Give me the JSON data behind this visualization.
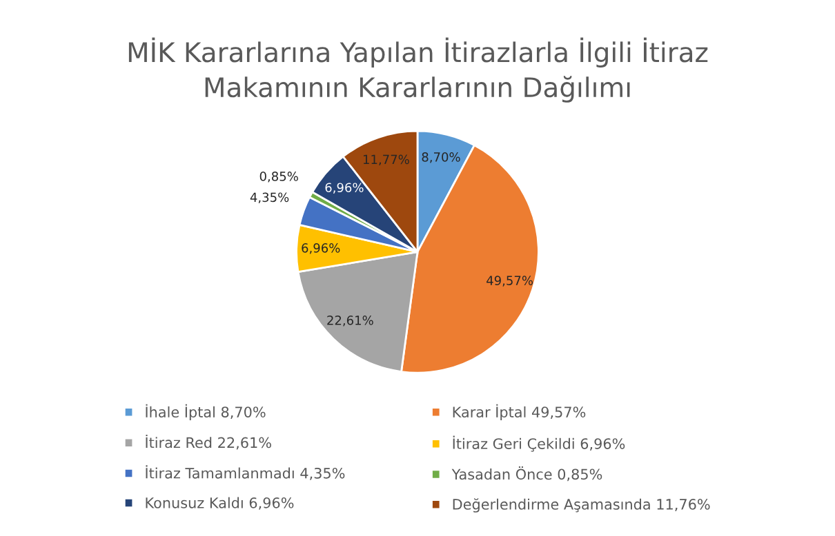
{
  "chart_data": {
    "type": "pie",
    "title": "MİK Kararlarına Yapılan İtirazlarla İlgili İtiraz\nMakamının Kararlarının Dağılımı",
    "categories": [
      "İhale İptal 8,70%",
      "Karar İptal 49,57%",
      "İtiraz Red 22,61%",
      "İtiraz Geri Çekildi 6,96%",
      "İtiraz Tamamlanmadı 4,35%",
      "Yasadan Önce 0,85%",
      "Konusuz Kaldı 6,96%",
      "Değerlendirme Aşamasında 11,76%"
    ],
    "values": [
      8.7,
      49.57,
      22.61,
      6.96,
      4.35,
      0.85,
      6.96,
      11.77
    ],
    "value_labels": [
      "8,70%",
      "49,57%",
      "22,61%",
      "6,96%",
      "4,35%",
      "0,85%",
      "6,96%",
      "11,77%"
    ],
    "colors": [
      "#5b9bd5",
      "#ed7d31",
      "#a5a5a5",
      "#ffc000",
      "#4472c4",
      "#70ad47",
      "#264478",
      "#9e480e"
    ],
    "legend": "bottom"
  }
}
